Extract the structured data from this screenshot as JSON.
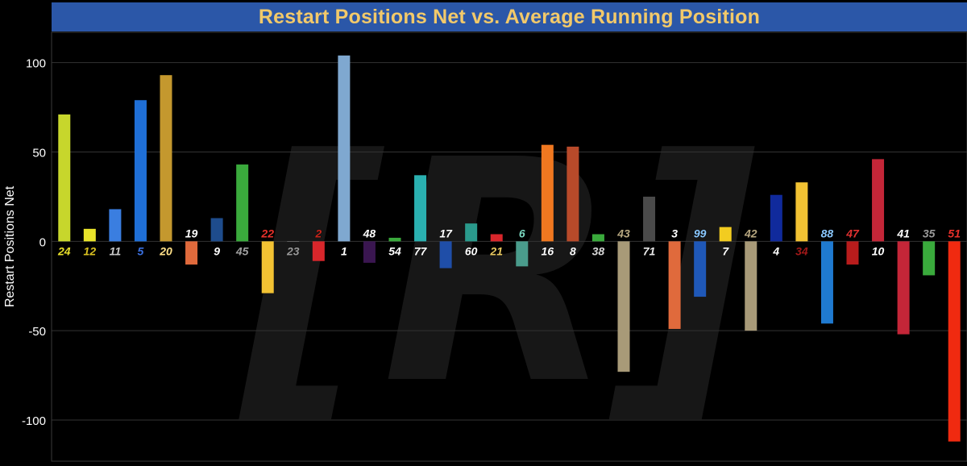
{
  "chart_data": {
    "type": "bar",
    "title": "Restart Positions Net vs. Average Running Position",
    "xlabel": "",
    "ylabel": "Restart Positions Net",
    "ylim": [
      -123,
      117
    ],
    "yticks": [
      100,
      50,
      0,
      -50,
      -100
    ],
    "grid": true,
    "categories": [
      "24",
      "12",
      "11",
      "5",
      "20",
      "19",
      "9",
      "45",
      "22",
      "23",
      "2",
      "1",
      "48",
      "54",
      "77",
      "17",
      "60",
      "21",
      "6",
      "16",
      "8",
      "38",
      "43",
      "71",
      "3",
      "99",
      "7",
      "42",
      "4",
      "34",
      "88",
      "47",
      "10",
      "41",
      "35",
      "51"
    ],
    "values": [
      71,
      7,
      18,
      79,
      93,
      -13,
      13,
      43,
      -29,
      0,
      -11,
      104,
      -12,
      2,
      37,
      -15,
      10,
      4,
      -14,
      54,
      53,
      4,
      -73,
      25,
      -49,
      -31,
      8,
      -50,
      26,
      33,
      -46,
      -13,
      46,
      -52,
      -19,
      -112
    ],
    "bar_colors": [
      "#c7d62c",
      "#e8e32a",
      "#3a7ee0",
      "#1f6fd6",
      "#c4982e",
      "#e06a3c",
      "#1e4c8c",
      "#3aaa3c",
      "#f2c233",
      "#8a8a8a",
      "#d8262b",
      "#7fa8d0",
      "#3a1650",
      "#3aaa3c",
      "#2ab0b0",
      "#1f4ea8",
      "#2a9a8c",
      "#d8262b",
      "#4a9c8c",
      "#f07820",
      "#b84a2a",
      "#3aaa3c",
      "#a89a78",
      "#4a4a4a",
      "#e06a3c",
      "#1f58b8",
      "#f2cc20",
      "#a89a78",
      "#102a9c",
      "#f2c233",
      "#1f7ad0",
      "#b81c1c",
      "#c42638",
      "#c42638",
      "#3aaa3c",
      "#f02a10"
    ],
    "label_colors": [
      "#e8e02a",
      "#d8c020",
      "#c8c8c8",
      "#3a70e0",
      "#ffe088",
      "#ffffff",
      "#ffffff",
      "#a0a0a0",
      "#e8302a",
      "#9a9a9a",
      "#c8261c",
      "#ffffff",
      "#ffffff",
      "#ffffff",
      "#ffffff",
      "#ffffff",
      "#ffffff",
      "#e8c860",
      "#7ad8c0",
      "#ffffff",
      "#ffffff",
      "#d8d8d8",
      "#b8a880",
      "#e8e8e8",
      "#ffffff",
      "#8ac8ff",
      "#ffffff",
      "#b8a880",
      "#ffffff",
      "#a01818",
      "#8ac8ff",
      "#e03030",
      "#ffffff",
      "#ffffff",
      "#9a9a9a",
      "#e8302a"
    ]
  },
  "watermark": {
    "text": "[R]",
    "color": "#2a2a2a"
  }
}
